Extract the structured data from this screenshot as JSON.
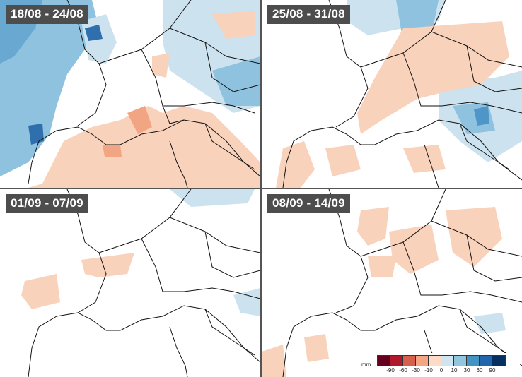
{
  "panels": [
    {
      "label": "18/08 - 24/08"
    },
    {
      "label": "25/08 - 31/08"
    },
    {
      "label": "01/09 - 07/09"
    },
    {
      "label": "08/09 - 14/09"
    }
  ],
  "legend": {
    "unit": "mm",
    "colors": [
      "#67001f",
      "#b2182b",
      "#d6604d",
      "#f4a582",
      "#fddbc7",
      "#d1e5f0",
      "#92c5de",
      "#4393c3",
      "#2166ac",
      "#053061",
      "#0b2a5c"
    ],
    "ticks": [
      "-90",
      "-60",
      "-30",
      "-10",
      "0",
      "10",
      "30",
      "60",
      "90"
    ]
  },
  "colors": {
    "neg_light": "#f9d2bc",
    "neg_mid": "#f1a583",
    "pos_light": "#cde2ef",
    "pos_mid": "#8fc2de",
    "pos_dark": "#4f96c8",
    "coast": "#111111",
    "label_bg": "#4d4d4d"
  }
}
